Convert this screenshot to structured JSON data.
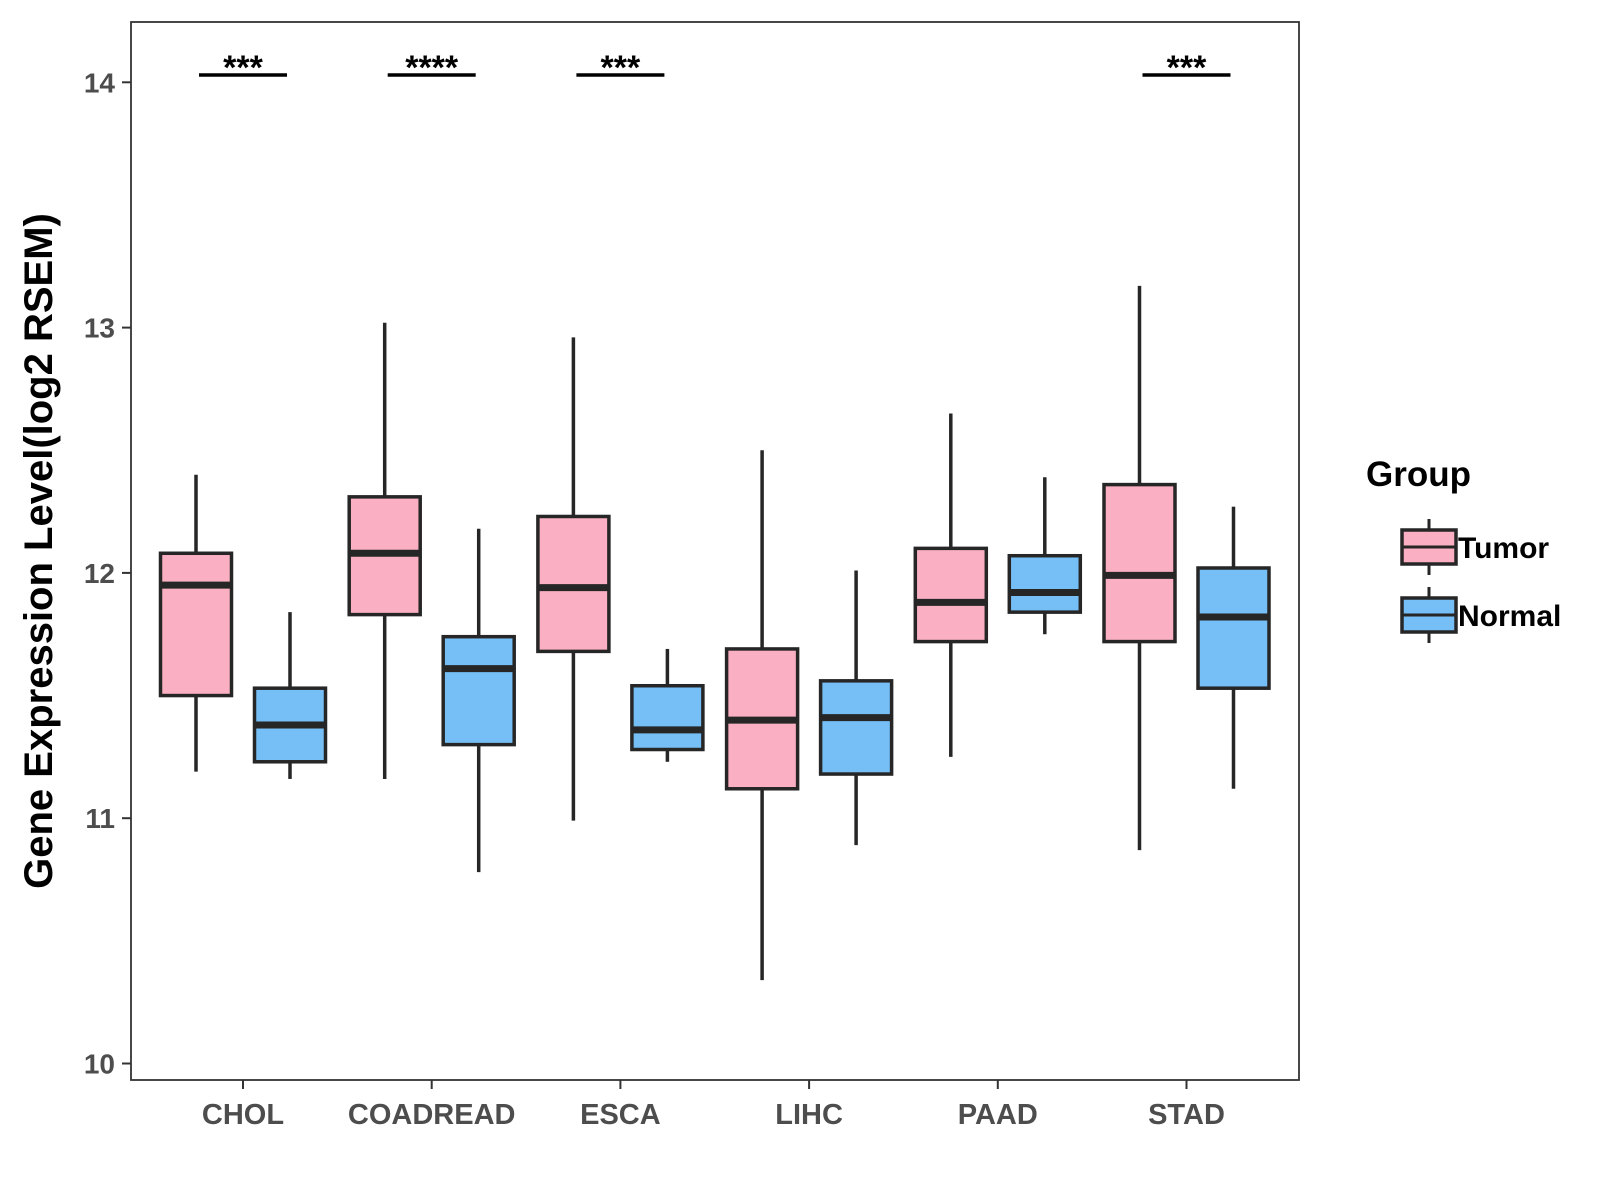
{
  "chart_data": {
    "type": "boxplot",
    "title": "",
    "xlabel": "",
    "ylabel": "Gene Expression Level(log2 RSEM)",
    "ylim": [
      10,
      14.25
    ],
    "yticks": [
      10,
      11,
      12,
      13,
      14
    ],
    "ytick_labels": [
      "10",
      "11",
      "12",
      "13",
      "14"
    ],
    "grid": false,
    "categories": [
      "CHOL",
      "COADREAD",
      "ESCA",
      "LIHC",
      "PAAD",
      "STAD"
    ],
    "legend": {
      "title": "Group",
      "position": "right",
      "entries": [
        {
          "name": "Tumor",
          "color": "#FAB0C2"
        },
        {
          "name": "Normal",
          "color": "#75BFF6"
        }
      ]
    },
    "series": [
      {
        "name": "Tumor",
        "color": "#FAB0C2",
        "boxes": [
          {
            "category": "CHOL",
            "min": 11.19,
            "q1": 11.5,
            "median": 11.95,
            "q3": 12.08,
            "max": 12.4
          },
          {
            "category": "COADREAD",
            "min": 11.16,
            "q1": 11.83,
            "median": 12.08,
            "q3": 12.31,
            "max": 13.02
          },
          {
            "category": "ESCA",
            "min": 10.99,
            "q1": 11.68,
            "median": 11.94,
            "q3": 12.23,
            "max": 12.96
          },
          {
            "category": "LIHC",
            "min": 10.34,
            "q1": 11.12,
            "median": 11.4,
            "q3": 11.69,
            "max": 12.5
          },
          {
            "category": "PAAD",
            "min": 11.25,
            "q1": 11.72,
            "median": 11.88,
            "q3": 12.1,
            "max": 12.65
          },
          {
            "category": "STAD",
            "min": 10.87,
            "q1": 11.72,
            "median": 11.99,
            "q3": 12.36,
            "max": 13.17
          }
        ]
      },
      {
        "name": "Normal",
        "color": "#75BFF6",
        "boxes": [
          {
            "category": "CHOL",
            "min": 11.16,
            "q1": 11.23,
            "median": 11.38,
            "q3": 11.53,
            "max": 11.84
          },
          {
            "category": "COADREAD",
            "min": 10.78,
            "q1": 11.3,
            "median": 11.61,
            "q3": 11.74,
            "max": 12.18
          },
          {
            "category": "ESCA",
            "min": 11.23,
            "q1": 11.28,
            "median": 11.36,
            "q3": 11.54,
            "max": 11.69
          },
          {
            "category": "LIHC",
            "min": 10.89,
            "q1": 11.18,
            "median": 11.41,
            "q3": 11.56,
            "max": 12.01
          },
          {
            "category": "PAAD",
            "min": 11.75,
            "q1": 11.84,
            "median": 11.92,
            "q3": 12.07,
            "max": 12.39
          },
          {
            "category": "STAD",
            "min": 11.12,
            "q1": 11.53,
            "median": 11.82,
            "q3": 12.02,
            "max": 12.27
          }
        ]
      }
    ],
    "significance": [
      {
        "category": "CHOL",
        "label": "***",
        "y": 14.03
      },
      {
        "category": "COADREAD",
        "label": "****",
        "y": 14.03
      },
      {
        "category": "ESCA",
        "label": "***",
        "y": 14.03
      },
      {
        "category": "STAD",
        "label": "***",
        "y": 14.03
      }
    ]
  }
}
